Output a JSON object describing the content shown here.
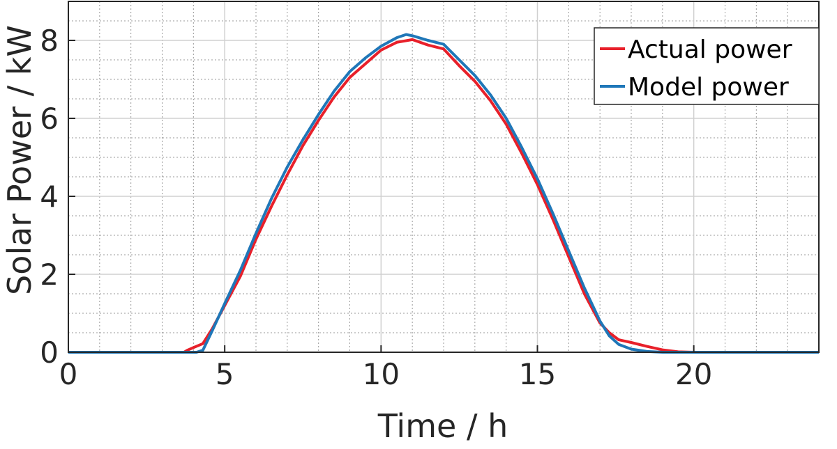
{
  "chart_data": {
    "type": "line",
    "title": "",
    "xlabel": "Time / h",
    "ylabel": "Solar Power / kW",
    "xlim": [
      0,
      24
    ],
    "ylim": [
      0,
      9
    ],
    "xticks": [
      0,
      5,
      10,
      15,
      20
    ],
    "yticks": [
      0,
      2,
      4,
      6,
      8
    ],
    "x_minor_step": 1,
    "y_minor_step": 0.5,
    "grid": true,
    "minor_grid": true,
    "legend_position": "top-right",
    "series": [
      {
        "name": "Actual power",
        "color": "#e8202a",
        "points": [
          [
            0,
            0
          ],
          [
            3.7,
            0
          ],
          [
            3.8,
            0.05
          ],
          [
            4.0,
            0.12
          ],
          [
            4.3,
            0.22
          ],
          [
            4.6,
            0.6
          ],
          [
            5.0,
            1.2
          ],
          [
            5.5,
            1.95
          ],
          [
            6.0,
            2.9
          ],
          [
            6.5,
            3.75
          ],
          [
            7.0,
            4.55
          ],
          [
            7.5,
            5.3
          ],
          [
            8.0,
            5.95
          ],
          [
            8.5,
            6.55
          ],
          [
            9.0,
            7.05
          ],
          [
            9.5,
            7.4
          ],
          [
            10.0,
            7.75
          ],
          [
            10.5,
            7.95
          ],
          [
            11.0,
            8.02
          ],
          [
            11.5,
            7.88
          ],
          [
            12.0,
            7.78
          ],
          [
            12.5,
            7.35
          ],
          [
            13.0,
            6.95
          ],
          [
            13.5,
            6.45
          ],
          [
            14.0,
            5.85
          ],
          [
            14.5,
            5.1
          ],
          [
            15.0,
            4.3
          ],
          [
            15.5,
            3.4
          ],
          [
            16.0,
            2.45
          ],
          [
            16.5,
            1.5
          ],
          [
            17.0,
            0.75
          ],
          [
            17.3,
            0.5
          ],
          [
            17.6,
            0.32
          ],
          [
            18.0,
            0.25
          ],
          [
            18.5,
            0.15
          ],
          [
            19.0,
            0.06
          ],
          [
            19.5,
            0.01
          ],
          [
            20.0,
            0
          ],
          [
            24,
            0
          ]
        ]
      },
      {
        "name": "Model power",
        "color": "#1f77b8",
        "points": [
          [
            0,
            0
          ],
          [
            4.1,
            0
          ],
          [
            4.3,
            0.05
          ],
          [
            4.6,
            0.55
          ],
          [
            5.0,
            1.25
          ],
          [
            5.5,
            2.1
          ],
          [
            6.0,
            3.05
          ],
          [
            6.5,
            3.95
          ],
          [
            7.0,
            4.75
          ],
          [
            7.5,
            5.45
          ],
          [
            8.0,
            6.1
          ],
          [
            8.5,
            6.7
          ],
          [
            9.0,
            7.2
          ],
          [
            9.5,
            7.55
          ],
          [
            10.0,
            7.85
          ],
          [
            10.5,
            8.07
          ],
          [
            10.8,
            8.15
          ],
          [
            11.0,
            8.12
          ],
          [
            11.5,
            8.0
          ],
          [
            12.0,
            7.9
          ],
          [
            12.5,
            7.5
          ],
          [
            13.0,
            7.1
          ],
          [
            13.5,
            6.6
          ],
          [
            14.0,
            6.0
          ],
          [
            14.5,
            5.25
          ],
          [
            15.0,
            4.45
          ],
          [
            15.5,
            3.55
          ],
          [
            16.0,
            2.6
          ],
          [
            16.5,
            1.65
          ],
          [
            17.0,
            0.8
          ],
          [
            17.3,
            0.42
          ],
          [
            17.6,
            0.2
          ],
          [
            18.0,
            0.08
          ],
          [
            18.5,
            0.02
          ],
          [
            19.0,
            0
          ],
          [
            24,
            0
          ]
        ]
      }
    ]
  }
}
